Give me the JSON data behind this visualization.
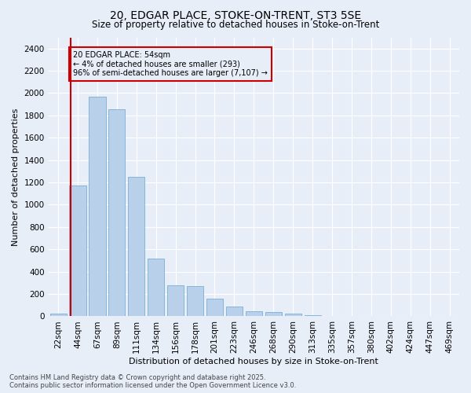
{
  "title1": "20, EDGAR PLACE, STOKE-ON-TRENT, ST3 5SE",
  "title2": "Size of property relative to detached houses in Stoke-on-Trent",
  "xlabel": "Distribution of detached houses by size in Stoke-on-Trent",
  "ylabel": "Number of detached properties",
  "categories": [
    "22sqm",
    "44sqm",
    "67sqm",
    "89sqm",
    "111sqm",
    "134sqm",
    "156sqm",
    "178sqm",
    "201sqm",
    "223sqm",
    "246sqm",
    "268sqm",
    "290sqm",
    "313sqm",
    "335sqm",
    "357sqm",
    "380sqm",
    "402sqm",
    "424sqm",
    "447sqm",
    "469sqm"
  ],
  "values": [
    25,
    1175,
    1970,
    1855,
    1250,
    515,
    275,
    270,
    155,
    90,
    45,
    40,
    25,
    12,
    5,
    5,
    2,
    2,
    1,
    1,
    1
  ],
  "bar_color": "#b8d0ea",
  "bar_edge_color": "#7aafd4",
  "vline_x_index": 1,
  "vline_color": "#cc0000",
  "annotation_title": "20 EDGAR PLACE: 54sqm",
  "annotation_line1": "← 4% of detached houses are smaller (293)",
  "annotation_line2": "96% of semi-detached houses are larger (7,107) →",
  "annotation_box_color": "#cc0000",
  "background_color": "#e8eef8",
  "grid_color": "#ffffff",
  "footer1": "Contains HM Land Registry data © Crown copyright and database right 2025.",
  "footer2": "Contains public sector information licensed under the Open Government Licence v3.0.",
  "ylim": [
    0,
    2500
  ],
  "yticks": [
    0,
    200,
    400,
    600,
    800,
    1000,
    1200,
    1400,
    1600,
    1800,
    2000,
    2200,
    2400
  ],
  "title_fontsize": 10,
  "subtitle_fontsize": 8.5,
  "axis_label_fontsize": 8,
  "tick_fontsize": 7.5,
  "footer_fontsize": 6,
  "annotation_fontsize": 7
}
